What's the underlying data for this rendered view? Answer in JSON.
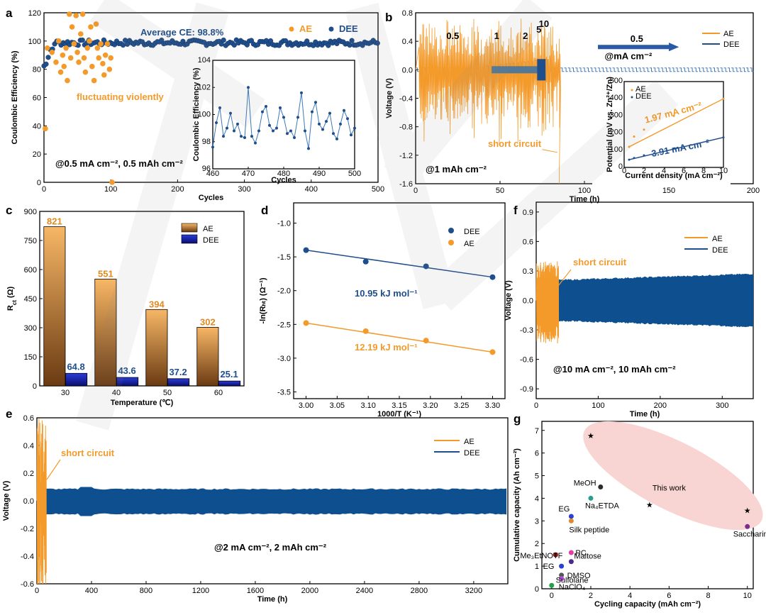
{
  "colors": {
    "ae": "#F39A2B",
    "dee": "#1F4E8C",
    "red_star": "#E02020",
    "ellipse": "#F8D5D2"
  },
  "chart_data": [
    {
      "panel": "a",
      "type": "scatter",
      "xlabel": "Cycles",
      "ylabel": "Coulombic Efficiency (%)",
      "xlim": [
        0,
        500
      ],
      "ylim": [
        0,
        120
      ],
      "xticks": [
        "0",
        "100",
        "200",
        "300",
        "400",
        "500"
      ],
      "yticks": [
        "0",
        "20",
        "40",
        "60",
        "80",
        "100",
        "120"
      ],
      "legend": [
        "AE",
        "DEE"
      ],
      "annotations": {
        "average": "Average CE: 98.8%",
        "fluct": "fluctuating violently",
        "cond": "@0.5 mA cm⁻², 0.5 mAh cm⁻²"
      },
      "series": [
        {
          "name": "AE",
          "x": [
            2,
            5,
            12,
            18,
            22,
            25,
            28,
            30,
            33,
            35,
            38,
            40,
            42,
            45,
            48,
            50,
            52,
            55,
            58,
            60,
            62,
            65,
            68,
            70,
            72,
            75,
            78,
            80,
            82,
            85,
            88,
            90,
            92,
            95,
            98,
            100,
            102
          ],
          "y": [
            38,
            95,
            92,
            85,
            100,
            78,
            90,
            82,
            95,
            72,
            120,
            88,
            110,
            98,
            118,
            92,
            85,
            105,
            120,
            88,
            78,
            95,
            100,
            110,
            82,
            72,
            112,
            95,
            88,
            98,
            84,
            76,
            90,
            98,
            80,
            88,
            0
          ]
        }
      ],
      "dee_band_y": 98.8,
      "inset": {
        "xlabel": "Cycles",
        "ylabel": "Coulombic Efficiency (%)",
        "xlim": [
          460,
          500
        ],
        "ylim": [
          96,
          104
        ],
        "xticks": [
          "460",
          "470",
          "480",
          "490",
          "500"
        ],
        "yticks": [
          "96",
          "98",
          "100",
          "102",
          "104"
        ],
        "x": [
          460,
          461,
          462,
          463,
          464,
          465,
          466,
          467,
          468,
          469,
          470,
          471,
          472,
          473,
          474,
          475,
          476,
          477,
          478,
          479,
          480,
          481,
          482,
          483,
          484,
          485,
          486,
          487,
          488,
          489,
          490,
          491,
          492,
          493,
          494,
          495,
          496,
          497,
          498,
          499,
          500
        ],
        "y": [
          97.6,
          99.4,
          100.5,
          98.4,
          99.0,
          100.1,
          98.8,
          99.3,
          98.4,
          98.3,
          102.0,
          98.4,
          97.9,
          98.8,
          100.2,
          100.6,
          99.2,
          98.8,
          99.0,
          100.5,
          99.8,
          98.6,
          98.8,
          98.3,
          99.8,
          101.6,
          98.8,
          97.5,
          100.2,
          100.9,
          99.3,
          98.9,
          99.5,
          100.1,
          98.6,
          98.2,
          99.3,
          100.3,
          99.7,
          98.5,
          99.0
        ]
      }
    },
    {
      "panel": "b",
      "type": "line",
      "xlabel": "Time (h)",
      "ylabel": "Voltage (V)",
      "xlim": [
        0,
        200
      ],
      "ylim": [
        -1.6,
        0.8
      ],
      "xticks": [
        "0",
        "50",
        "100",
        "150",
        "200"
      ],
      "yticks": [
        "-1.6",
        "-1.2",
        "-0.8",
        "-0.4",
        "0.0",
        "0.4",
        "0.8"
      ],
      "legend": [
        "AE",
        "DEE"
      ],
      "rate_labels": [
        "0.5",
        "1",
        "2",
        "5",
        "10"
      ],
      "arrow_label": "0.5",
      "unit_label": "@mA cm⁻²",
      "annotations": {
        "short": "short circuit",
        "cond": "@1 mAh cm⁻²"
      },
      "inset": {
        "xlabel": "Current density (mA cm⁻²)",
        "ylabel": "Potential (mV vs. Zn²⁺/Zn)",
        "xlim": [
          0,
          10
        ],
        "ylim": [
          0,
          500
        ],
        "xticks": [
          "0",
          "2",
          "4",
          "6",
          "8",
          "10"
        ],
        "yticks": [
          "0",
          "100",
          "200",
          "300",
          "400",
          "500"
        ],
        "legend": [
          "AE",
          "DEE"
        ],
        "series": [
          {
            "name": "AE",
            "x": [
              0.5,
              1,
              2,
              5,
              10
            ],
            "y": [
              120,
              180,
              220,
              300,
              400
            ],
            "slope_label": "1.97 mA cm⁻²"
          },
          {
            "name": "DEE",
            "x": [
              0.5,
              1,
              2,
              5,
              10
            ],
            "y": [
              45,
              55,
              70,
              110,
              175
            ],
            "slope_label": "3.91 mA cm⁻²"
          }
        ]
      }
    },
    {
      "panel": "c",
      "type": "bar",
      "xlabel": "Temperature (℃)",
      "ylabel": "Rₕₜ (Ω)",
      "ylabel_main": "R",
      "ylabel_sub": "ct",
      "ylabel_unit": " (Ω)",
      "ylim": [
        0,
        900
      ],
      "categories": [
        "30",
        "40",
        "50",
        "60"
      ],
      "yticks": [
        "0",
        "150",
        "300",
        "450",
        "600",
        "750",
        "900"
      ],
      "series": [
        {
          "name": "AE",
          "values": [
            821,
            551,
            394,
            302
          ]
        },
        {
          "name": "DEE",
          "values": [
            64.8,
            43.6,
            37.2,
            25.1
          ]
        }
      ],
      "value_labels": {
        "AE": [
          "821",
          "551",
          "394",
          "302"
        ],
        "DEE": [
          "64.8",
          "43.6",
          "37.2",
          "25.1"
        ]
      }
    },
    {
      "panel": "d",
      "type": "scatter",
      "xlabel": "1000/T (K⁻¹)",
      "ylabel": "-ln(Rₕₜ) (Ω⁻¹)",
      "xlim": [
        2.98,
        3.32
      ],
      "ylim": [
        -3.6,
        -0.7
      ],
      "xticks": [
        "3.00",
        "3.05",
        "3.10",
        "3.15",
        "3.20",
        "3.25",
        "3.30"
      ],
      "yticks": [
        "-3.5",
        "-3.0",
        "-2.5",
        "-2.0",
        "-1.5",
        "-1.0"
      ],
      "series": [
        {
          "name": "DEE",
          "x": [
            3.0,
            3.096,
            3.193,
            3.3
          ],
          "y": [
            -1.4,
            -1.57,
            -1.64,
            -1.8
          ],
          "ea_label": "10.95 kJ mol⁻¹"
        },
        {
          "name": "AE",
          "x": [
            3.0,
            3.096,
            3.193,
            3.3
          ],
          "y": [
            -2.48,
            -2.6,
            -2.74,
            -2.91
          ],
          "ea_label": "12.19 kJ mol⁻¹"
        }
      ]
    },
    {
      "panel": "e",
      "type": "line",
      "xlabel": "Time (h)",
      "ylabel": "Voltage (V)",
      "xlim": [
        0,
        3450
      ],
      "ylim": [
        -0.6,
        0.6
      ],
      "xticks": [
        "0",
        "400",
        "800",
        "1200",
        "1600",
        "2000",
        "2400",
        "2800",
        "3200"
      ],
      "yticks": [
        "-0.6",
        "-0.4",
        "-0.2",
        "0.0",
        "0.2",
        "0.4",
        "0.6"
      ],
      "legend": [
        "AE",
        "DEE"
      ],
      "annotations": {
        "short": "short circuit",
        "cond": "@2 mA cm⁻², 2 mAh cm⁻²"
      }
    },
    {
      "panel": "f",
      "type": "line",
      "xlabel": "Time (h)",
      "ylabel": "Voltage (V)",
      "xlim": [
        0,
        350
      ],
      "ylim": [
        -1.0,
        1.0
      ],
      "xticks": [
        "0",
        "100",
        "200",
        "300"
      ],
      "yticks": [
        "-0.9",
        "-0.6",
        "-0.3",
        "0.0",
        "0.3",
        "0.6",
        "0.9"
      ],
      "legend": [
        "AE",
        "DEE"
      ],
      "annotations": {
        "short": "short circuit",
        "cond": "@10 mA cm⁻², 10 mAh cm⁻²"
      }
    },
    {
      "panel": "g",
      "type": "scatter",
      "xlabel": "Cycling capacity (mAh cm⁻²)",
      "ylabel": "Cumulative capacity (Ah cm⁻²)",
      "xlim": [
        -0.5,
        10.3
      ],
      "ylim": [
        0,
        7.4
      ],
      "xticks": [
        "0",
        "2",
        "4",
        "6",
        "8",
        "10"
      ],
      "yticks": [
        "0",
        "1",
        "2",
        "3",
        "4",
        "5",
        "6",
        "7"
      ],
      "this_work_label": "This work",
      "this_work": [
        {
          "x": 2,
          "y": 6.8
        },
        {
          "x": 5,
          "y": 3.75
        },
        {
          "x": 10,
          "y": 3.5
        }
      ],
      "points": [
        {
          "label": "MeOH",
          "x": 2.5,
          "y": 4.5,
          "color": "#2b2b2b"
        },
        {
          "label": "Na₄ETDA",
          "x": 2.0,
          "y": 4.0,
          "color": "#2a9d8f"
        },
        {
          "label": "EG",
          "x": 1.0,
          "y": 3.2,
          "color": "#2b3fd0"
        },
        {
          "label": "Silk peptide",
          "x": 1.0,
          "y": 3.0,
          "color": "#e08a2b"
        },
        {
          "label": "Saccharin",
          "x": 10.0,
          "y": 2.75,
          "color": "#7b2d8e"
        },
        {
          "label": "Me₃EtNOTF",
          "x": 0.2,
          "y": 1.5,
          "color": "#8b1010"
        },
        {
          "label": "PC",
          "x": 1.0,
          "y": 1.6,
          "color": "#e43fa8"
        },
        {
          "label": "Maltose",
          "x": 1.0,
          "y": 1.2,
          "color": "#4a2a8e"
        },
        {
          "label": "EG",
          "x": 0.5,
          "y": 1.0,
          "color": "#2b3fd0"
        },
        {
          "label": "DMSO",
          "x": 0.5,
          "y": 0.6,
          "color": "#555555"
        },
        {
          "label": "Sulfolane",
          "x": 0.5,
          "y": 0.45,
          "color": "#b24fd1"
        },
        {
          "label": "NaClO₄",
          "x": 0.0,
          "y": 0.15,
          "color": "#23a04a"
        }
      ]
    }
  ]
}
